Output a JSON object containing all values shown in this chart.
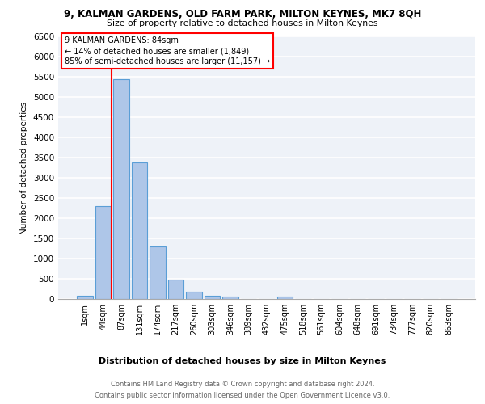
{
  "title1": "9, KALMAN GARDENS, OLD FARM PARK, MILTON KEYNES, MK7 8QH",
  "title2": "Size of property relative to detached houses in Milton Keynes",
  "xlabel": "Distribution of detached houses by size in Milton Keynes",
  "ylabel": "Number of detached properties",
  "categories": [
    "1sqm",
    "44sqm",
    "87sqm",
    "131sqm",
    "174sqm",
    "217sqm",
    "260sqm",
    "303sqm",
    "346sqm",
    "389sqm",
    "432sqm",
    "475sqm",
    "518sqm",
    "561sqm",
    "604sqm",
    "648sqm",
    "691sqm",
    "734sqm",
    "777sqm",
    "820sqm",
    "863sqm"
  ],
  "values": [
    75,
    2300,
    5450,
    3380,
    1300,
    480,
    185,
    90,
    55,
    0,
    0,
    55,
    0,
    0,
    0,
    0,
    0,
    0,
    0,
    0,
    0
  ],
  "bar_color": "#aec6e8",
  "bar_edge_color": "#5a9ed6",
  "ylim": [
    0,
    6500
  ],
  "yticks": [
    0,
    500,
    1000,
    1500,
    2000,
    2500,
    3000,
    3500,
    4000,
    4500,
    5000,
    5500,
    6000,
    6500
  ],
  "property_label": "9 KALMAN GARDENS: 84sqm",
  "annotation_line1": "← 14% of detached houses are smaller (1,849)",
  "annotation_line2": "85% of semi-detached houses are larger (11,157) →",
  "red_line_x": 1.45,
  "footnote1": "Contains HM Land Registry data © Crown copyright and database right 2024.",
  "footnote2": "Contains public sector information licensed under the Open Government Licence v3.0.",
  "bg_color": "#eef2f8",
  "grid_color": "#ffffff"
}
